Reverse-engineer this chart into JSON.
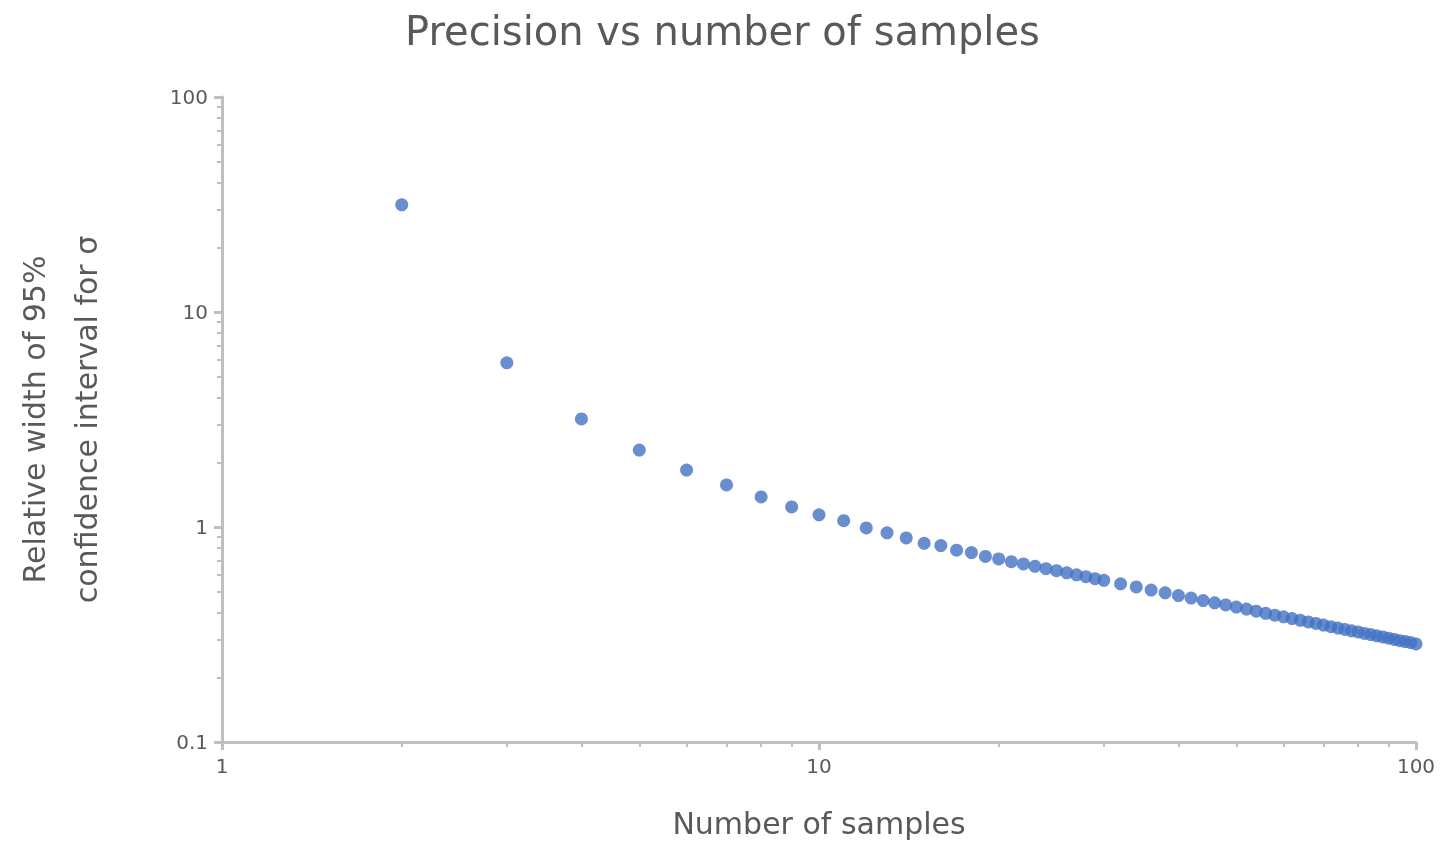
{
  "chart_data": {
    "type": "scatter",
    "title": "Precision vs number of samples",
    "xlabel": "Number of samples",
    "ylabel": "Relative width of 95%\nconfidence interval for σ",
    "log": "xy",
    "grid": false,
    "marker": "circle",
    "xlim": [
      1,
      100
    ],
    "xticks": [
      1,
      10,
      100
    ],
    "ylim": [
      0.1,
      100
    ],
    "yticks": [
      0.1,
      1,
      10,
      100
    ],
    "series": [
      {
        "color": "#4472c4",
        "x": [
          2,
          3,
          4,
          5,
          6,
          7,
          8,
          9,
          10,
          11,
          12,
          13,
          14,
          15,
          16,
          17,
          18,
          19,
          20,
          21,
          22,
          23,
          24,
          25,
          26,
          27,
          28,
          29,
          30,
          32,
          34,
          36,
          38,
          40,
          42,
          44,
          46,
          48,
          50,
          52,
          54,
          56,
          58,
          60,
          62,
          64,
          66,
          68,
          70,
          72,
          74,
          76,
          78,
          80,
          82,
          84,
          86,
          88,
          90,
          92,
          94,
          96,
          98,
          100
        ],
        "values": [
          31.5,
          5.8,
          3.18,
          2.28,
          1.84,
          1.57,
          1.38,
          1.24,
          1.14,
          1.07,
          0.99,
          0.94,
          0.89,
          0.84,
          0.82,
          0.78,
          0.76,
          0.73,
          0.71,
          0.69,
          0.673,
          0.656,
          0.64,
          0.626,
          0.612,
          0.599,
          0.587,
          0.575,
          0.565,
          0.544,
          0.526,
          0.509,
          0.494,
          0.48,
          0.467,
          0.455,
          0.444,
          0.434,
          0.424,
          0.415,
          0.406,
          0.397,
          0.389,
          0.382,
          0.375,
          0.368,
          0.362,
          0.356,
          0.35,
          0.344,
          0.339,
          0.334,
          0.329,
          0.325,
          0.32,
          0.316,
          0.312,
          0.308,
          0.304,
          0.3,
          0.296,
          0.293,
          0.29,
          0.286
        ]
      }
    ]
  }
}
